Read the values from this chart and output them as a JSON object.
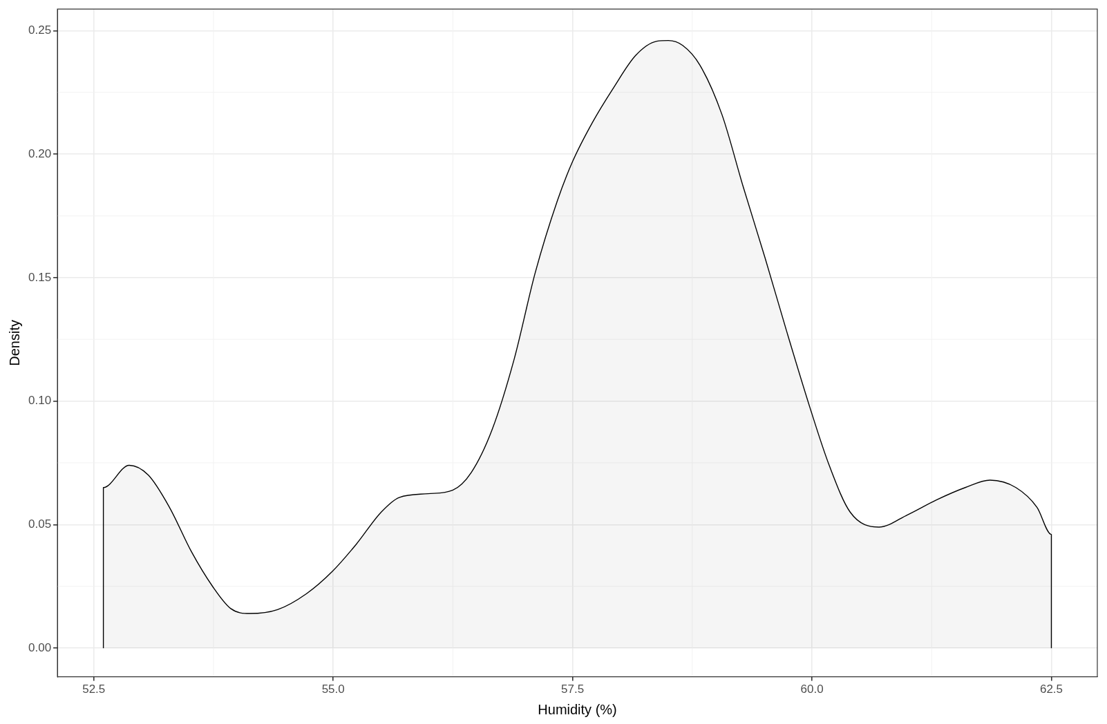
{
  "chart_data": {
    "type": "area",
    "xlabel": "Humidity (%)",
    "ylabel": "Density",
    "x": [
      52.6,
      52.6,
      52.87,
      53.07,
      53.29,
      53.52,
      53.74,
      53.93,
      54.13,
      54.42,
      54.72,
      54.99,
      55.24,
      55.5,
      55.69,
      55.99,
      56.25,
      56.44,
      56.66,
      56.89,
      57.11,
      57.34,
      57.5,
      57.71,
      57.93,
      58.16,
      58.38,
      58.5,
      58.65,
      58.83,
      59.06,
      59.28,
      59.51,
      59.73,
      59.99,
      60.18,
      60.4,
      60.7,
      61.0,
      61.3,
      61.6,
      61.86,
      62.13,
      62.35,
      62.5,
      62.5
    ],
    "series": [
      {
        "color": "#000000",
        "values": [
          0,
          0.065,
          0.074,
          0.07,
          0.057,
          0.039,
          0.025,
          0.016,
          0.014,
          0.0156,
          0.022,
          0.031,
          0.042,
          0.055,
          0.061,
          0.0625,
          0.064,
          0.071,
          0.0885,
          0.117,
          0.152,
          0.181,
          0.197,
          0.213,
          0.227,
          0.24,
          0.2457,
          0.246,
          0.244,
          0.236,
          0.216,
          0.187,
          0.158,
          0.129,
          0.096,
          0.074,
          0.055,
          0.049,
          0.054,
          0.06,
          0.065,
          0.068,
          0.065,
          0.057,
          0.046,
          0
        ]
      }
    ],
    "xlim": [
      52.12,
      62.98
    ],
    "ylim": [
      -0.0116,
      0.2587
    ],
    "xticks": [
      {
        "value": 52.5,
        "label": "52.5"
      },
      {
        "value": 55,
        "label": "55.0"
      },
      {
        "value": 57.5,
        "label": "57.5"
      },
      {
        "value": 60,
        "label": "60.0"
      },
      {
        "value": 62.5,
        "label": "62.5"
      }
    ],
    "yticks": [
      {
        "value": 0,
        "label": "0.00"
      },
      {
        "value": 0.05,
        "label": "0.05"
      },
      {
        "value": 0.1,
        "label": "0.10"
      },
      {
        "value": 0.15,
        "label": "0.15"
      },
      {
        "value": 0.2,
        "label": "0.20"
      },
      {
        "value": 0.25,
        "label": "0.25"
      }
    ],
    "grid": true,
    "legend": false,
    "marker": "none",
    "line_style": "solid"
  }
}
